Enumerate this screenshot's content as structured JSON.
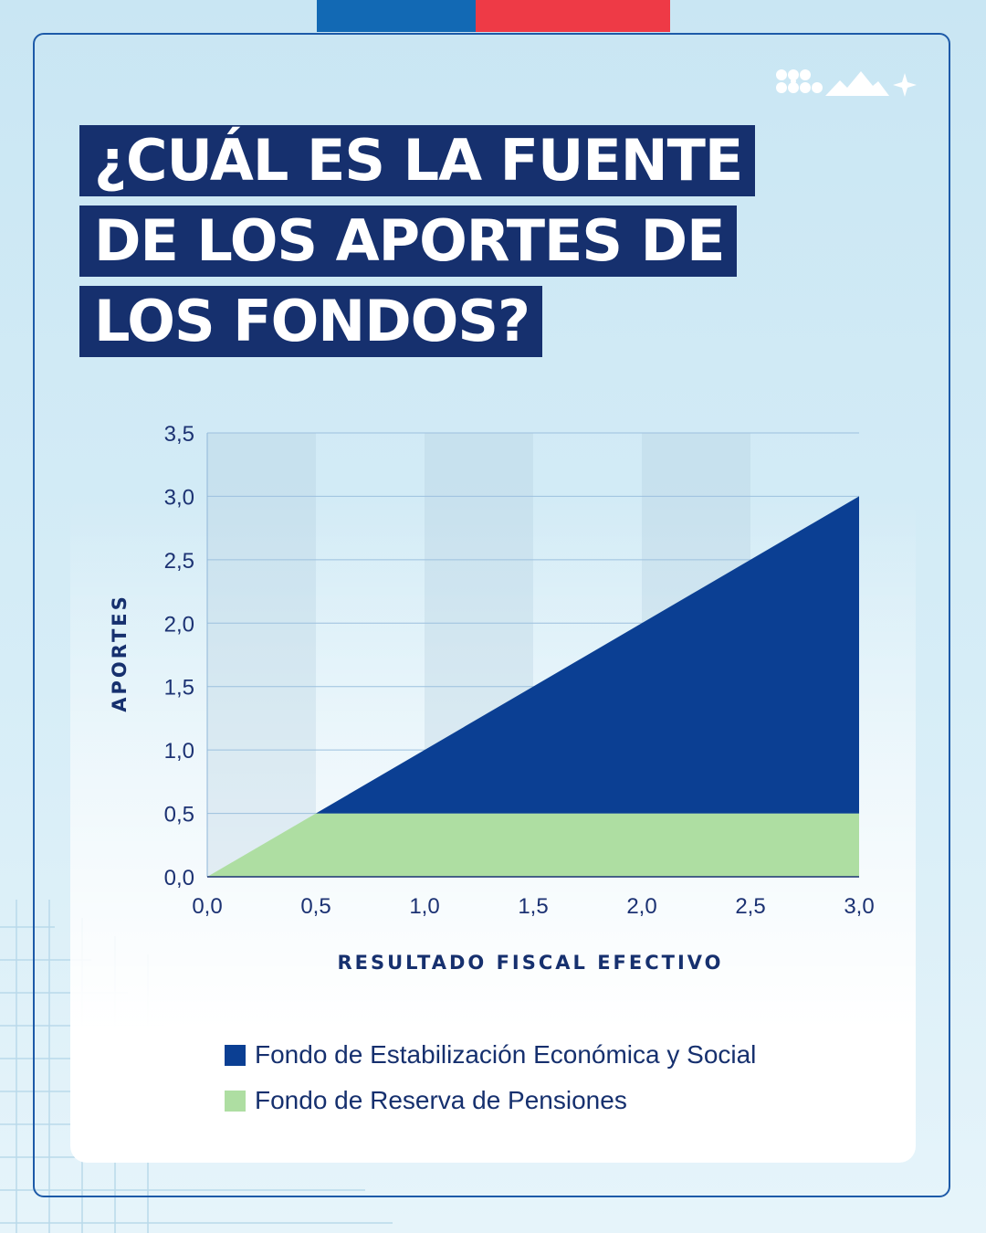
{
  "header": {
    "title_lines": [
      "¿CUÁL ES LA FUENTE",
      "DE LOS APORTES DE",
      "LOS FONDOS?"
    ]
  },
  "colors": {
    "brand_blue": "#1269b4",
    "brand_red": "#ee3a46",
    "title_bg": "#16306e",
    "fees": "#0b3f93",
    "frp": "#aedea2"
  },
  "icons": [
    "logo-dots-icon",
    "mountains-icon",
    "star-icon"
  ],
  "chart_data": {
    "type": "area",
    "xlabel": "RESULTADO FISCAL EFECTIVO",
    "ylabel": "APORTES",
    "xlim": [
      0,
      3
    ],
    "ylim": [
      0,
      3.5
    ],
    "x_ticks": [
      "0,0",
      "0,5",
      "1,0",
      "1,5",
      "2,0",
      "2,5",
      "3,0"
    ],
    "y_ticks": [
      "0,0",
      "0,5",
      "1,0",
      "1,5",
      "2,0",
      "2,5",
      "3,0",
      "3,5"
    ],
    "legend_position": "bottom",
    "series": [
      {
        "name": "Fondo de Estabilización Económica y Social",
        "color": "#0b3f93",
        "x": [
          0,
          0.5,
          3
        ],
        "values": [
          0,
          0,
          2.5
        ]
      },
      {
        "name": "Fondo de Reserva de Pensiones",
        "color": "#aedea2",
        "x": [
          0,
          0.5,
          3
        ],
        "values": [
          0,
          0.5,
          0.5
        ]
      }
    ]
  }
}
